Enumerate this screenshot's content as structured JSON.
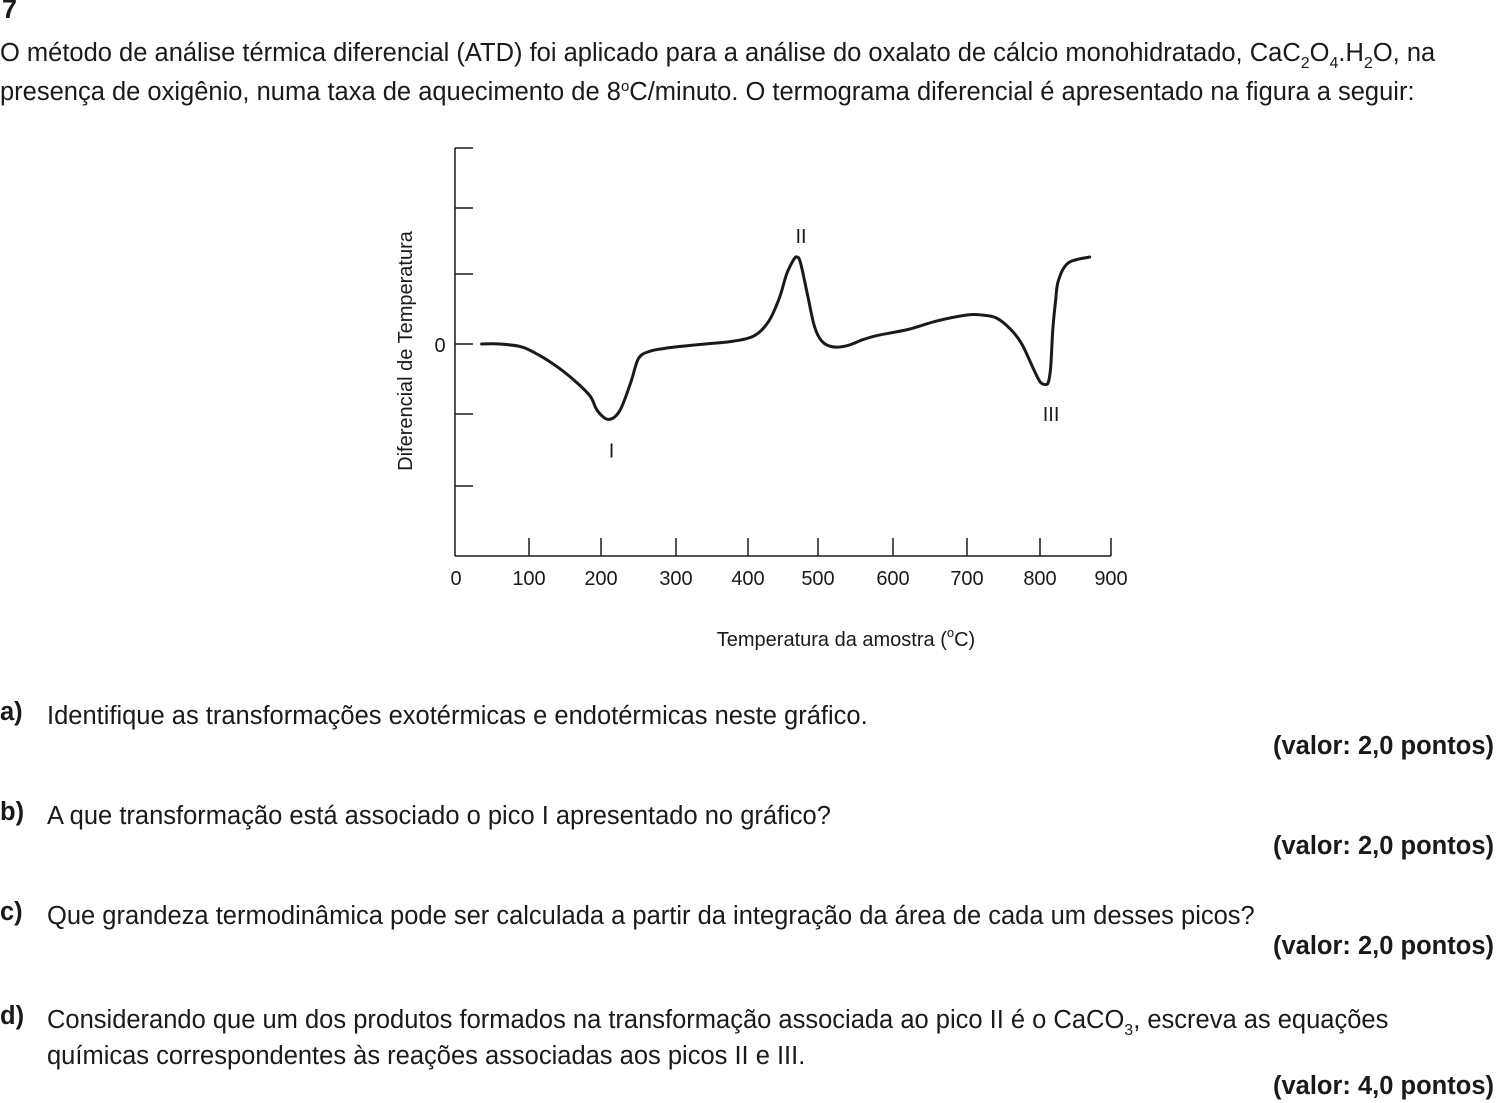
{
  "question": {
    "number": "7",
    "intro": {
      "p1": "O método de análise térmica diferencial (ATD) foi aplicado para a análise do oxalato de cálcio monohidratado, CaC",
      "s1": "2",
      "p2": "O",
      "s2": "4",
      "p3": ".H",
      "s3": "2",
      "p4": "O, na presença de oxigênio, numa taxa de aquecimento de 8",
      "sup1": "o",
      "p5": "C/minuto. O termograma diferencial é apresentado na figura a seguir:"
    }
  },
  "chart_data": {
    "type": "line",
    "xlabel_pre": "Temperatura da amostra (",
    "xlabel_sup": "o",
    "xlabel_post": "C)",
    "ylabel": "Diferencial de Temperatura",
    "x_ticks": [
      "0",
      "100",
      "200",
      "300",
      "400",
      "500",
      "600",
      "700",
      "800",
      "900"
    ],
    "y_tick_label": "0",
    "xlim": [
      0,
      900
    ],
    "peaks": [
      {
        "label": "I",
        "x": 210,
        "direction": "down"
      },
      {
        "label": "II",
        "x": 470,
        "direction": "up"
      },
      {
        "label": "III",
        "x": 810,
        "direction": "down"
      }
    ],
    "series": [
      {
        "x": [
          35,
          60,
          90,
          115,
          140,
          165,
          185,
          195,
          210,
          225,
          240,
          250,
          265,
          285,
          300,
          340,
          380,
          410,
          430,
          445,
          455,
          465,
          470,
          475,
          485,
          495,
          505,
          520,
          540,
          560,
          580,
          620,
          660,
          700,
          720,
          740,
          760,
          775,
          790,
          800,
          808,
          812,
          815,
          818,
          822,
          826,
          840,
          870
        ],
        "y": [
          0.0,
          0.0,
          -0.1,
          -0.4,
          -0.8,
          -1.3,
          -1.8,
          -2.3,
          -2.6,
          -2.3,
          -1.3,
          -0.5,
          -0.25,
          -0.15,
          -0.1,
          0.0,
          0.1,
          0.3,
          0.8,
          1.6,
          2.4,
          2.9,
          3.0,
          2.8,
          1.7,
          0.6,
          0.1,
          -0.1,
          -0.05,
          0.15,
          0.3,
          0.5,
          0.8,
          1.0,
          1.0,
          0.9,
          0.5,
          0.0,
          -0.8,
          -1.3,
          -1.4,
          -1.3,
          -0.8,
          0.5,
          1.5,
          2.2,
          2.8,
          3.0
        ]
      }
    ]
  },
  "items": [
    {
      "label": "a)",
      "text": "Identifique as transformações exotérmicas e endotérmicas neste gráfico.",
      "value": "(valor: 2,0 pontos)"
    },
    {
      "label": "b)",
      "text": "A que transformação está associado o pico I apresentado no gráfico?",
      "value": "(valor: 2,0 pontos)"
    },
    {
      "label": "c)",
      "text": "Que grandeza termodinâmica pode ser calculada a partir da integração da área de cada um desses picos?",
      "value": "(valor: 2,0 pontos)"
    },
    {
      "label": "d)",
      "text_pre": "Considerando que um dos produtos formados na transformação associada ao pico II é o CaCO",
      "text_sub": "3",
      "text_post": ", escreva as equações químicas correspondentes às reações associadas aos picos II e III.",
      "value": "(valor: 4,0 pontos)"
    }
  ]
}
